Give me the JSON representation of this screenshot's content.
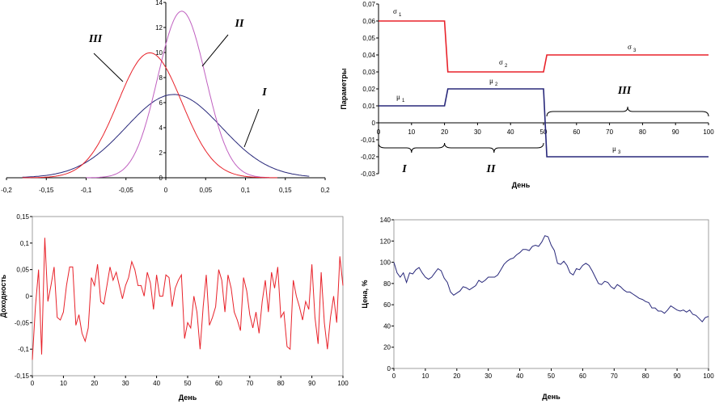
{
  "colors": {
    "red": "#e8222a",
    "blue": "#28287a",
    "purple": "#c060c0",
    "axis": "#000000"
  },
  "chart_data": [
    {
      "id": "densities",
      "type": "line",
      "title": "",
      "xlabel": "",
      "ylabel": "",
      "xlim": [
        -0.2,
        0.2
      ],
      "ylim": [
        0,
        14
      ],
      "xticks": [
        "-0,2",
        "-0,15",
        "-0,1",
        "-0,05",
        "0",
        "0,05",
        "0,1",
        "0,15",
        "0,2"
      ],
      "yticks": [
        "0",
        "2",
        "4",
        "6",
        "8",
        "10",
        "12",
        "14"
      ],
      "series": [
        {
          "name": "I",
          "mu": 0.01,
          "sigma": 0.06,
          "color": "#28287a",
          "x_range": [
            -0.18,
            0.18
          ]
        },
        {
          "name": "II",
          "mu": 0.02,
          "sigma": 0.03,
          "color": "#c060c0",
          "x_range": [
            -0.1,
            0.13
          ]
        },
        {
          "name": "III",
          "mu": -0.02,
          "sigma": 0.04,
          "color": "#e8222a",
          "x_range": [
            -0.18,
            0.14
          ]
        }
      ],
      "annotations": [
        "III",
        "II",
        "I"
      ]
    },
    {
      "id": "parameters",
      "type": "line",
      "xlabel": "День",
      "ylabel": "Параметры",
      "xlim": [
        0,
        100
      ],
      "ylim": [
        -0.03,
        0.07
      ],
      "xticks": [
        "0",
        "10",
        "20",
        "30",
        "40",
        "50",
        "60",
        "70",
        "80",
        "90",
        "100"
      ],
      "yticks": [
        "-0,03",
        "-0,02",
        "-0,01",
        "0",
        "0,01",
        "0,02",
        "0,03",
        "0,04",
        "0,05",
        "0,06",
        "0,07"
      ],
      "series": [
        {
          "name": "sigma",
          "color": "#e8222a",
          "x": [
            0,
            20,
            21,
            50,
            51,
            100
          ],
          "values": [
            0.06,
            0.06,
            0.03,
            0.03,
            0.04,
            0.04
          ]
        },
        {
          "name": "mu",
          "color": "#28287a",
          "x": [
            0,
            20,
            21,
            50,
            51,
            100
          ],
          "values": [
            0.01,
            0.01,
            0.02,
            0.02,
            -0.02,
            -0.02
          ]
        }
      ],
      "labels": {
        "sigma1": "σ",
        "sigma1_sub": "1",
        "sigma2": "σ",
        "sigma2_sub": "2",
        "sigma3": "σ",
        "sigma3_sub": "3",
        "mu1": "μ",
        "mu1_sub": "1",
        "mu2": "μ",
        "mu2_sub": "2",
        "mu3": "μ",
        "mu3_sub": "3"
      },
      "regions": [
        "I",
        "II",
        "III"
      ]
    },
    {
      "id": "returns",
      "type": "line",
      "xlabel": "День",
      "ylabel": "Доходность",
      "xlim": [
        0,
        100
      ],
      "ylim": [
        -0.15,
        0.15
      ],
      "xticks": [
        "0",
        "10",
        "20",
        "30",
        "40",
        "50",
        "60",
        "70",
        "80",
        "90",
        "100"
      ],
      "yticks": [
        "-0,15",
        "-0,1",
        "-0,05",
        "0",
        "0,05",
        "0,1",
        "0,15"
      ],
      "series": [
        {
          "name": "returns",
          "color": "#e8222a",
          "values": [
            -0.12,
            -0.02,
            0.05,
            -0.11,
            0.11,
            -0.01,
            0.02,
            0.055,
            -0.04,
            -0.045,
            -0.03,
            0.02,
            0.055,
            0.055,
            -0.055,
            -0.035,
            -0.07,
            -0.085,
            -0.06,
            0.035,
            0.02,
            0.06,
            -0.01,
            -0.015,
            0.02,
            0.055,
            0.03,
            0.045,
            0.02,
            -0.005,
            0.02,
            0.035,
            0.065,
            0.05,
            0.02,
            0.02,
            0.0,
            0.045,
            0.025,
            -0.025,
            0.04,
            0.0,
            0.0,
            0.04,
            0.035,
            -0.02,
            0.015,
            0.03,
            0.04,
            -0.08,
            -0.05,
            -0.06,
            0.0,
            -0.03,
            -0.1,
            -0.02,
            0.04,
            -0.055,
            -0.04,
            -0.02,
            0.05,
            0.03,
            -0.03,
            0.04,
            0.015,
            -0.03,
            -0.045,
            -0.065,
            0.035,
            0.01,
            -0.035,
            -0.06,
            -0.03,
            -0.07,
            -0.01,
            0.03,
            -0.03,
            0.045,
            0.015,
            0.055,
            -0.04,
            -0.03,
            -0.095,
            -0.1,
            0.03,
            0.0,
            -0.02,
            -0.045,
            -0.01,
            -0.025,
            0.06,
            -0.04,
            -0.09,
            0.045,
            -0.05,
            -0.1,
            -0.04,
            0.0,
            -0.05,
            0.075,
            0.02
          ]
        }
      ]
    },
    {
      "id": "price",
      "type": "line",
      "xlabel": "День",
      "ylabel": "Цена, %",
      "xlim": [
        0,
        100
      ],
      "ylim": [
        0,
        140
      ],
      "xticks": [
        "0",
        "10",
        "20",
        "30",
        "40",
        "50",
        "60",
        "70",
        "80",
        "90",
        "100"
      ],
      "yticks": [
        "0",
        "20",
        "40",
        "60",
        "80",
        "100",
        "120",
        "140"
      ],
      "series": [
        {
          "name": "price",
          "color": "#28287a",
          "values": [
            100,
            90,
            86,
            90,
            81,
            90,
            89,
            93,
            95,
            90,
            86,
            84,
            86,
            90,
            94,
            92,
            85,
            81,
            72,
            69,
            71,
            73,
            77,
            76,
            74,
            76,
            78,
            83,
            81,
            83,
            86,
            86,
            86,
            88,
            93,
            98,
            101,
            103,
            104,
            107,
            109,
            112,
            112,
            111,
            115,
            116,
            115,
            119,
            125,
            124,
            116,
            111,
            99,
            98,
            101,
            97,
            90,
            88,
            94,
            93,
            97,
            99,
            97,
            92,
            86,
            80,
            79,
            82,
            81,
            77,
            75,
            79,
            77,
            74,
            72,
            72,
            70,
            68,
            66,
            65,
            63,
            62,
            57,
            57,
            54,
            54,
            52,
            55,
            59,
            57,
            55,
            54,
            55,
            53,
            55,
            51,
            50,
            47,
            44,
            48,
            49
          ]
        }
      ]
    }
  ]
}
